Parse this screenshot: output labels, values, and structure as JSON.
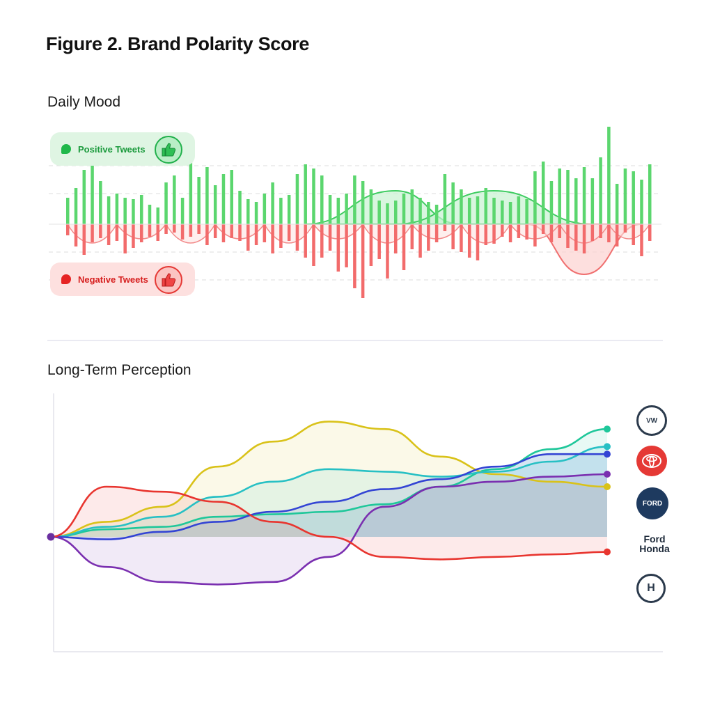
{
  "figure_title": "Figure 2. Brand Polarity Score",
  "chart_data": [
    {
      "type": "bar",
      "title": "Daily Mood",
      "legend": [
        {
          "label": "Positive Tweets",
          "color": "#5bd66e",
          "icon": "thumbs-up-icon"
        },
        {
          "label": "Negative Tweets",
          "color": "#f26b6b",
          "icon": "thumbs-down-icon"
        }
      ],
      "series": [
        {
          "name": "Positive Tweets",
          "values": [
            38,
            52,
            78,
            92,
            62,
            40,
            44,
            38,
            36,
            42,
            28,
            24,
            60,
            70,
            38,
            94,
            68,
            82,
            56,
            72,
            78,
            48,
            36,
            32,
            44,
            60,
            38,
            42,
            72,
            86,
            80,
            70,
            42,
            38,
            44,
            70,
            62,
            50,
            34,
            30,
            34,
            44,
            50,
            38,
            32,
            28,
            72,
            60,
            50,
            38,
            40,
            52,
            38,
            34,
            32,
            40,
            36,
            76,
            90,
            62,
            80,
            78,
            66,
            82,
            66,
            96,
            140,
            58,
            80,
            76,
            64,
            86
          ]
        },
        {
          "name": "Negative Tweets",
          "values": [
            16,
            32,
            44,
            26,
            20,
            30,
            24,
            42,
            34,
            26,
            18,
            24,
            14,
            12,
            22,
            18,
            14,
            30,
            20,
            26,
            20,
            24,
            38,
            30,
            26,
            42,
            34,
            24,
            38,
            48,
            60,
            48,
            38,
            68,
            62,
            92,
            106,
            60,
            50,
            78,
            42,
            66,
            36,
            48,
            38,
            26,
            10,
            36,
            40,
            48,
            52,
            30,
            28,
            18,
            26,
            20,
            22,
            32,
            14,
            26,
            20,
            34,
            38,
            42,
            24,
            20,
            26,
            32,
            12,
            30,
            46,
            24
          ]
        }
      ],
      "overlays": {
        "positive_waves": [
          [
            29,
            40,
            48
          ],
          [
            40,
            52,
            64
          ]
        ],
        "negative_waves": [
          [
            56,
            63,
            70
          ]
        ]
      }
    },
    {
      "type": "line",
      "title": "Long-Term Perception",
      "x": [
        0,
        1,
        2,
        3,
        4,
        5,
        6,
        7,
        8,
        9,
        10
      ],
      "series": [
        {
          "name": "Teal",
          "color": "#1fc79a",
          "values": [
            0,
            3,
            4,
            8,
            9,
            10,
            13,
            20,
            27,
            35,
            43
          ]
        },
        {
          "name": "Yellow",
          "color": "#d9c219",
          "values": [
            0,
            6,
            12,
            28,
            38,
            46,
            43,
            32,
            25,
            22,
            20
          ]
        },
        {
          "name": "Cyan",
          "color": "#27c0c4",
          "values": [
            0,
            4,
            8,
            16,
            22,
            27,
            26,
            24,
            26,
            30,
            36
          ]
        },
        {
          "name": "Blue",
          "color": "#3344d4",
          "values": [
            0,
            -1,
            2,
            6,
            10,
            14,
            19,
            23,
            28,
            33,
            33
          ]
        },
        {
          "name": "Purple",
          "color": "#7a2fb0",
          "values": [
            0,
            -12,
            -18,
            -19,
            -18,
            -8,
            12,
            20,
            22,
            24,
            25
          ]
        },
        {
          "name": "Red",
          "color": "#e8352f",
          "values": [
            0,
            20,
            18,
            14,
            6,
            0,
            -8,
            -9,
            -8,
            -7,
            -6
          ]
        }
      ],
      "brands": [
        {
          "name": "Volkswagen",
          "icon": "brand-logo-icon",
          "label": "VW"
        },
        {
          "name": "Toyota",
          "icon": "toyota-logo-icon",
          "label": "TOYOTA"
        },
        {
          "name": "Ford",
          "icon": "ford-badge-icon",
          "label": "FORD"
        },
        {
          "name": "Ford Honda",
          "icon": "",
          "label_line1": "Ford",
          "label_line2": "Honda"
        },
        {
          "name": "Honda",
          "icon": "honda-logo-icon",
          "label": "H"
        }
      ]
    }
  ]
}
